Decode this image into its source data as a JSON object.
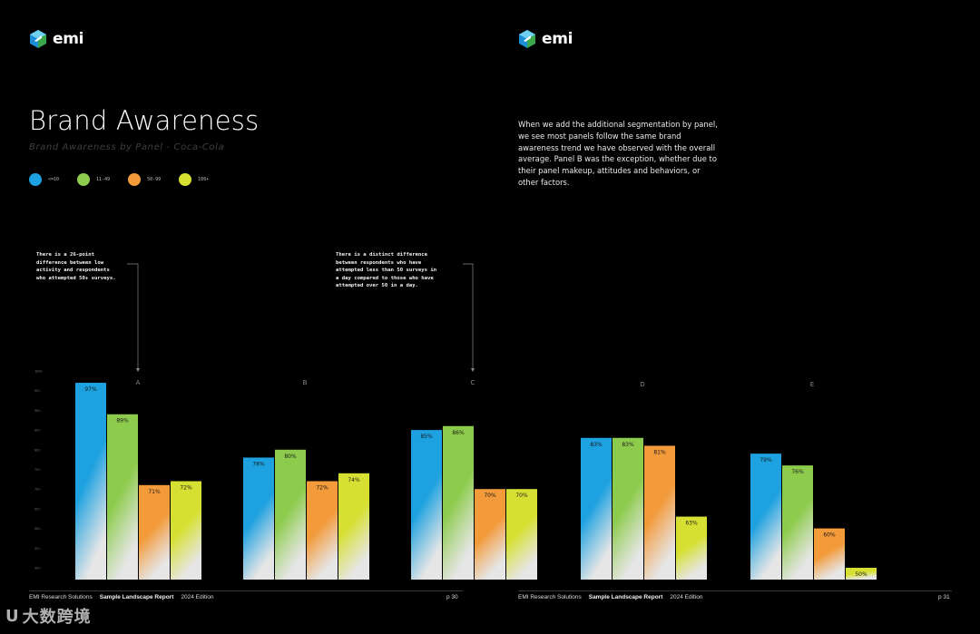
{
  "brand": {
    "name": "emi",
    "logo_icon": "emi-hexagon-logo-icon"
  },
  "left_page": {
    "title": "Brand Awareness",
    "subtitle": "Brand Awareness by Panel - Coca-Cola",
    "note_a": [
      "There is a 26-point",
      "difference between low",
      "activity and respondents",
      "who attempted 50+ surveys."
    ],
    "note_c": [
      "There is a distinct difference",
      "between respondents who have",
      "attempted less than 50 surveys in",
      "a day compared to those who have",
      "attempted over 50 in a day."
    ],
    "footer": {
      "company": "EMI Research Solutions",
      "report": "Sample Landscape Report",
      "edition": "2024 Edition",
      "page": "p 30"
    }
  },
  "right_page": {
    "intro": "When we add the additional segmentation by panel, we see most panels follow the same brand awareness trend we have observed with the overall average. Panel B was the exception, whether due to their panel makeup, attitudes and behaviors, or other factors.",
    "footer": {
      "company": "EMI Research Solutions",
      "report": "Sample Landscape Report",
      "edition": "2024 Edition",
      "page": "p 31"
    }
  },
  "colors": {
    "blue": "#1da1e0",
    "green": "#8dcb4c",
    "orange": "#f39a3a",
    "yellow": "#d6e033",
    "background": "#000000"
  },
  "watermark": {
    "text": "大数跨境"
  },
  "chart_data": {
    "type": "bar",
    "categories": [
      "A",
      "B",
      "C",
      "D",
      "E"
    ],
    "series": [
      {
        "name": "<=10",
        "color": "#1da1e0",
        "values": [
          97,
          78,
          85,
          83,
          79
        ]
      },
      {
        "name": "11-49",
        "color": "#8dcb4c",
        "values": [
          89,
          80,
          86,
          83,
          76
        ]
      },
      {
        "name": "50-99",
        "color": "#f39a3a",
        "values": [
          71,
          72,
          70,
          81,
          60
        ]
      },
      {
        "name": "100+",
        "color": "#d6e033",
        "values": [
          72,
          74,
          70,
          63,
          50
        ]
      }
    ],
    "value_suffix": "%",
    "yticks": [
      "100%",
      "95%",
      "90%",
      "85%",
      "80%",
      "75%",
      "70%",
      "65%",
      "60%",
      "55%",
      "50%"
    ],
    "ylim": [
      47,
      100
    ],
    "legend_position": "top-left",
    "grid": false
  }
}
